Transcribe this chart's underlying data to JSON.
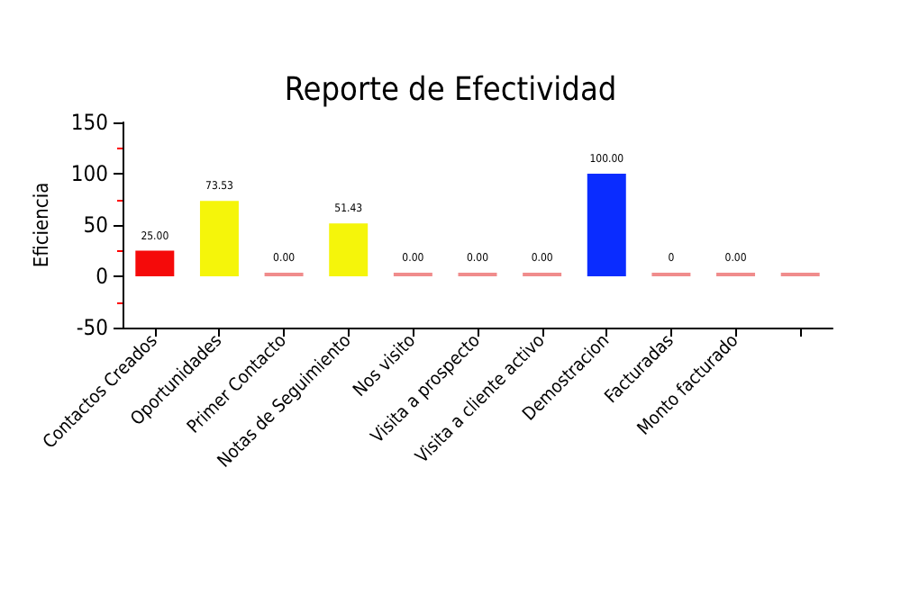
{
  "chart_data": {
    "type": "bar",
    "title": "Reporte de Efectividad",
    "ylabel": "Eficiencia",
    "categories": [
      "Contactos Creados",
      "Oportunidades",
      "Primer Contacto",
      "Notas de Seguimiento",
      "Nos visito",
      "Visita a prospecto",
      "Visita a cliente activo",
      "Demostracion",
      "Facturadas",
      "Monto facturado",
      null
    ],
    "values": [
      25,
      73.53,
      0,
      51.43,
      0,
      0,
      0,
      100,
      0,
      0,
      0
    ],
    "colors": [
      "#f50a0a",
      "#f5f50a",
      "#f08c8c",
      "#f5f50a",
      "#f08c8c",
      "#f08c8c",
      "#f08c8c",
      "#0a2cff",
      "#f08c8c",
      "#f08c8c",
      "#f08c8c"
    ],
    "value_labels": [
      "25.00",
      "73.53",
      "0.00",
      "51.43",
      "0.00",
      "0.00",
      "0.00",
      "100.00",
      "0",
      "0.00",
      null
    ],
    "ylim": [
      -50,
      150
    ],
    "yticks": [
      -50,
      0,
      50,
      100,
      150
    ],
    "grid": false
  }
}
